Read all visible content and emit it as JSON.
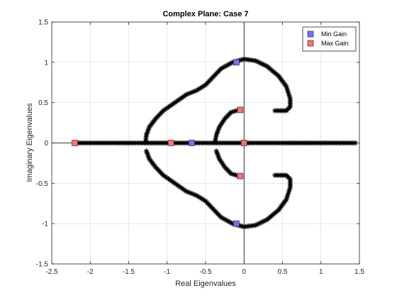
{
  "chart_data": {
    "type": "scatter",
    "title": "Complex Plane: Case 7",
    "xlabel": "Real Eigenvalues",
    "ylabel": "Imaginary Eigenvalues",
    "xlim": [
      -2.5,
      1.5
    ],
    "ylim": [
      -1.5,
      1.5
    ],
    "xticks": [
      -2.5,
      -2,
      -1.5,
      -1,
      -0.5,
      0,
      0.5,
      1,
      1.5
    ],
    "xtick_labels": [
      "-2.5",
      "-2",
      "-1.5",
      "-1",
      "-0.5",
      "0",
      "0.5",
      "1",
      "1.5"
    ],
    "yticks": [
      -1.5,
      -1,
      -0.5,
      0,
      0.5,
      1,
      1.5
    ],
    "ytick_labels": [
      "-1.5",
      "-1",
      "-0.5",
      "0",
      "0.5",
      "1",
      "1.5"
    ],
    "grid": true,
    "legend_position": "top-right",
    "series": [
      {
        "name": "",
        "marker": "asterisk",
        "color": "#000000",
        "points": [
          [
            -2.18,
            0
          ],
          [
            -2.0,
            0
          ],
          [
            -1.8,
            0
          ],
          [
            -1.6,
            0
          ],
          [
            -1.45,
            0
          ],
          [
            -1.35,
            0
          ],
          [
            -1.3,
            0
          ],
          [
            -1.28,
            0
          ],
          [
            -1.0,
            0
          ],
          [
            -0.98,
            0
          ],
          [
            -0.8,
            0
          ],
          [
            -0.7,
            0
          ],
          [
            -0.6,
            0
          ],
          [
            -0.5,
            0
          ],
          [
            -0.4,
            0
          ],
          [
            -0.3,
            0
          ],
          [
            -0.2,
            0
          ],
          [
            -0.1,
            0
          ],
          [
            0.0,
            0
          ],
          [
            0.1,
            0
          ],
          [
            0.3,
            0
          ],
          [
            0.5,
            0
          ],
          [
            0.8,
            0
          ],
          [
            1.1,
            0
          ],
          [
            1.45,
            0
          ],
          [
            -1.28,
            0
          ],
          [
            -1.27,
            0.1
          ],
          [
            -1.23,
            0.2
          ],
          [
            -1.15,
            0.3
          ],
          [
            -1.05,
            0.4
          ],
          [
            -0.9,
            0.5
          ],
          [
            -0.75,
            0.6
          ],
          [
            -0.62,
            0.65
          ],
          [
            -0.5,
            0.72
          ],
          [
            -0.4,
            0.82
          ],
          [
            -0.3,
            0.92
          ],
          [
            -0.15,
            1.0
          ],
          [
            0.0,
            1.04
          ],
          [
            0.15,
            1.02
          ],
          [
            0.3,
            0.95
          ],
          [
            0.45,
            0.83
          ],
          [
            0.55,
            0.7
          ],
          [
            0.6,
            0.55
          ],
          [
            0.6,
            0.45
          ],
          [
            0.55,
            0.4
          ],
          [
            0.4,
            0.4
          ],
          [
            -1.27,
            -0.1
          ],
          [
            -1.23,
            -0.2
          ],
          [
            -1.15,
            -0.3
          ],
          [
            -1.05,
            -0.4
          ],
          [
            -0.9,
            -0.5
          ],
          [
            -0.75,
            -0.6
          ],
          [
            -0.62,
            -0.65
          ],
          [
            -0.5,
            -0.72
          ],
          [
            -0.4,
            -0.82
          ],
          [
            -0.3,
            -0.92
          ],
          [
            -0.15,
            -1.0
          ],
          [
            0.0,
            -1.04
          ],
          [
            0.15,
            -1.02
          ],
          [
            0.3,
            -0.95
          ],
          [
            0.45,
            -0.83
          ],
          [
            0.55,
            -0.7
          ],
          [
            0.6,
            -0.55
          ],
          [
            0.6,
            -0.45
          ],
          [
            0.55,
            -0.4
          ],
          [
            0.4,
            -0.4
          ],
          [
            -0.38,
            0
          ],
          [
            -0.36,
            0.1
          ],
          [
            -0.32,
            0.2
          ],
          [
            -0.25,
            0.3
          ],
          [
            -0.17,
            0.38
          ],
          [
            -0.07,
            0.41
          ],
          [
            -0.36,
            -0.1
          ],
          [
            -0.32,
            -0.2
          ],
          [
            -0.25,
            -0.3
          ],
          [
            -0.17,
            -0.38
          ],
          [
            -0.07,
            -0.41
          ]
        ]
      },
      {
        "name": "Min Gain",
        "marker": "square",
        "color": "#7070ff",
        "points": [
          [
            -0.1,
            1.0
          ],
          [
            -0.1,
            -1.0
          ],
          [
            -0.68,
            0
          ]
        ]
      },
      {
        "name": "Max Gain",
        "marker": "square",
        "color": "#ff7070",
        "points": [
          [
            -2.2,
            0
          ],
          [
            -0.95,
            0
          ],
          [
            -0.05,
            0.41
          ],
          [
            -0.05,
            -0.41
          ],
          [
            0.0,
            0
          ]
        ]
      }
    ]
  }
}
